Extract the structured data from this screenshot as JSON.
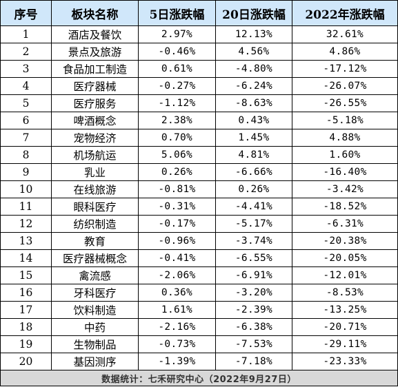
{
  "table": {
    "headers": [
      "序号",
      "板块名称",
      "5日涨跌幅",
      "20日涨跌幅",
      "2022年涨跌幅"
    ],
    "rows": [
      [
        "1",
        "酒店及餐饮",
        "2.97%",
        "12.13%",
        "32.61%"
      ],
      [
        "2",
        "景点及旅游",
        "-0.46%",
        "4.56%",
        "4.86%"
      ],
      [
        "3",
        "食品加工制造",
        "0.61%",
        "-4.80%",
        "-17.12%"
      ],
      [
        "4",
        "医疗器械",
        "-0.27%",
        "-6.24%",
        "-26.07%"
      ],
      [
        "5",
        "医疗服务",
        "-1.12%",
        "-8.63%",
        "-26.55%"
      ],
      [
        "6",
        "啤酒概念",
        "2.38%",
        "0.43%",
        "-5.18%"
      ],
      [
        "7",
        "宠物经济",
        "0.70%",
        "1.45%",
        "4.88%"
      ],
      [
        "8",
        "机场航运",
        "5.06%",
        "4.81%",
        "1.60%"
      ],
      [
        "9",
        "乳业",
        "0.26%",
        "-6.66%",
        "-16.40%"
      ],
      [
        "10",
        "在线旅游",
        "-0.81%",
        "0.26%",
        "-3.42%"
      ],
      [
        "11",
        "眼科医疗",
        "-0.31%",
        "-4.41%",
        "-18.52%"
      ],
      [
        "12",
        "纺织制造",
        "-0.17%",
        "-5.17%",
        "-6.31%"
      ],
      [
        "13",
        "教育",
        "-0.96%",
        "-3.74%",
        "-20.38%"
      ],
      [
        "14",
        "医疗器械概念",
        "-0.41%",
        "-6.55%",
        "-20.05%"
      ],
      [
        "15",
        "禽流感",
        "-2.06%",
        "-6.91%",
        "-12.01%"
      ],
      [
        "16",
        "牙科医疗",
        "0.36%",
        "-3.20%",
        "-8.53%"
      ],
      [
        "17",
        "饮料制造",
        "1.61%",
        "-2.39%",
        "-13.25%"
      ],
      [
        "18",
        "中药",
        "-2.16%",
        "-6.38%",
        "-20.71%"
      ],
      [
        "19",
        "生物制品",
        "-0.73%",
        "-7.53%",
        "-29.11%"
      ],
      [
        "20",
        "基因测序",
        "-1.39%",
        "-7.18%",
        "-23.33%"
      ]
    ],
    "footer": "数据统计：七禾研究中心（2022年9月27日）"
  },
  "colors": {
    "header_bg": "#d0e7fa",
    "footer_bg": "#d8d8d8",
    "border": "#000000"
  }
}
